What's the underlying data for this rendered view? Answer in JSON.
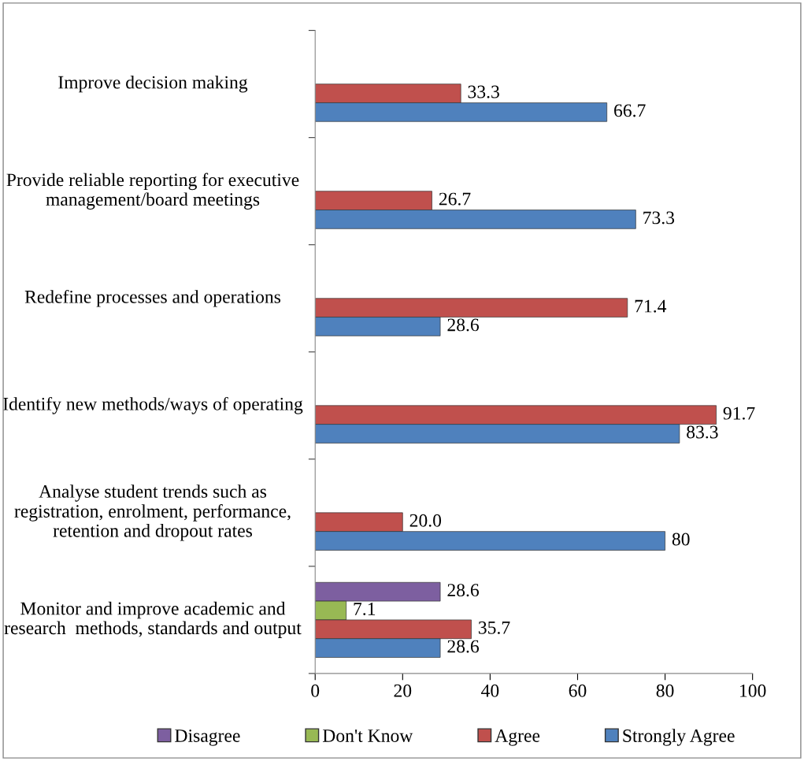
{
  "chart_data": {
    "type": "bar",
    "orientation": "horizontal",
    "categories": [
      "Improve decision making",
      "Provide reliable reporting for executive management/board meetings",
      "Redefine processes and operations",
      "Identify new methods/ways of operating",
      "Analyse student trends such as registration, enrolment, performance, retention and dropout rates",
      "Monitor and improve academic and research  methods, standards and output"
    ],
    "series": [
      {
        "name": "Disagree",
        "color": "#7d5fa0",
        "values": [
          null,
          null,
          null,
          null,
          null,
          28.6
        ],
        "value_labels": [
          null,
          null,
          null,
          null,
          null,
          "28.6"
        ]
      },
      {
        "name": "Don't Know",
        "color": "#98b954",
        "values": [
          null,
          null,
          null,
          null,
          null,
          7.1
        ],
        "value_labels": [
          null,
          null,
          null,
          null,
          null,
          "7.1"
        ]
      },
      {
        "name": "Agree",
        "color": "#c0504d",
        "values": [
          33.3,
          26.7,
          71.4,
          91.7,
          20.0,
          35.7
        ],
        "value_labels": [
          "33.3",
          "26.7",
          "71.4",
          "91.7",
          "20.0",
          "35.7"
        ]
      },
      {
        "name": "Strongly Agree",
        "color": "#4f81bd",
        "values": [
          66.7,
          73.3,
          28.6,
          83.3,
          80,
          28.6
        ],
        "value_labels": [
          "66.7",
          "73.3",
          "28.6",
          "83.3",
          "80",
          "28.6"
        ]
      }
    ],
    "xlim": [
      0,
      100
    ],
    "xticks": [
      0,
      20,
      40,
      60,
      80,
      100
    ],
    "grid": false,
    "legend": "bottom"
  }
}
